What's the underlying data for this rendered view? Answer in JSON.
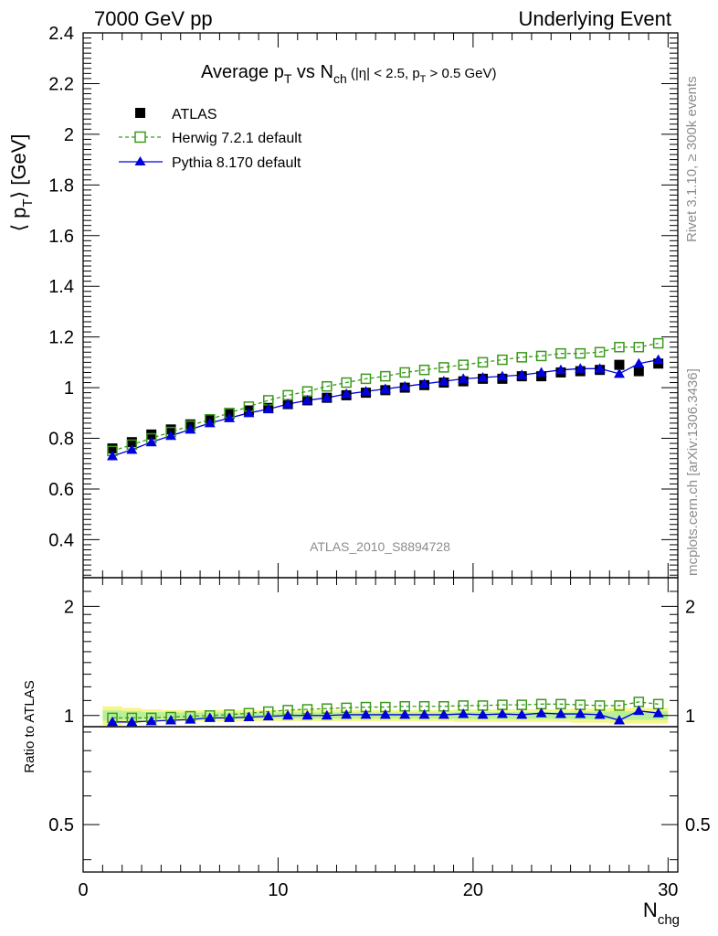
{
  "header": {
    "left": "7000 GeV pp",
    "right": "Underlying Event"
  },
  "chart_data": [
    {
      "type": "scatter",
      "title": "Average p_T vs N_ch (|η| < 2.5, p_T > 0.5 GeV)",
      "title_parts": {
        "main": "Average p",
        "sub_t": "T",
        "vs": " vs N",
        "sub_ch": "ch",
        "cut_1": " (|η| < 2.5, p",
        "cut_sub": "T",
        "cut_2": " > 0.5 GeV)"
      },
      "ylabel": "⟨ p_T ⟩ [GeV]",
      "ylabel_parts": {
        "open": "⟨ p",
        "sub": "T",
        "close": "⟩ [GeV]"
      },
      "xlim": [
        0,
        30.5
      ],
      "ylim": [
        0.25,
        2.4
      ],
      "yticks": [
        0.4,
        0.6,
        0.8,
        1,
        1.2,
        1.4,
        1.6,
        1.8,
        2,
        2.2,
        2.4
      ],
      "ytick_labels": [
        "0.4",
        "0.6",
        "0.8",
        "1",
        "1.2",
        "1.4",
        "1.6",
        "1.8",
        "2",
        "2.2",
        "2.4"
      ],
      "legend_position": "top-left",
      "watermark": "ATLAS_2010_S8894728",
      "x": [
        1.5,
        2.5,
        3.5,
        4.5,
        5.5,
        6.5,
        7.5,
        8.5,
        9.5,
        10.5,
        11.5,
        12.5,
        13.5,
        14.5,
        15.5,
        16.5,
        17.5,
        18.5,
        19.5,
        20.5,
        21.5,
        22.5,
        23.5,
        24.5,
        25.5,
        26.5,
        27.5,
        28.5,
        29.5
      ],
      "series": [
        {
          "name": "ATLAS",
          "marker": "filled-square",
          "color": "#000000",
          "values": [
            0.76,
            0.785,
            0.815,
            0.835,
            0.855,
            0.875,
            0.895,
            0.91,
            0.92,
            0.935,
            0.95,
            0.96,
            0.97,
            0.98,
            0.99,
            1.0,
            1.01,
            1.02,
            1.025,
            1.035,
            1.035,
            1.045,
            1.045,
            1.06,
            1.065,
            1.07,
            1.09,
            1.065,
            1.095
          ]
        },
        {
          "name": "Herwig 7.2.1 default",
          "marker": "open-square",
          "color": "#3a9a1a",
          "line": "dashed",
          "values": [
            0.75,
            0.775,
            0.8,
            0.825,
            0.85,
            0.875,
            0.9,
            0.925,
            0.95,
            0.97,
            0.985,
            1.005,
            1.02,
            1.035,
            1.045,
            1.06,
            1.07,
            1.08,
            1.09,
            1.1,
            1.11,
            1.12,
            1.125,
            1.135,
            1.135,
            1.14,
            1.16,
            1.16,
            1.175
          ]
        },
        {
          "name": "Pythia 8.170 default",
          "marker": "filled-triangle",
          "color": "#0000dd",
          "line": "solid",
          "values": [
            0.73,
            0.755,
            0.785,
            0.81,
            0.835,
            0.86,
            0.88,
            0.9,
            0.915,
            0.935,
            0.95,
            0.96,
            0.975,
            0.985,
            0.995,
            1.005,
            1.015,
            1.025,
            1.035,
            1.04,
            1.045,
            1.05,
            1.06,
            1.07,
            1.075,
            1.075,
            1.055,
            1.095,
            1.11
          ]
        }
      ]
    },
    {
      "type": "scatter",
      "ylabel": "Ratio to ATLAS",
      "xlabel": "N_chg",
      "xlabel_parts": {
        "main": "N",
        "sub": "chg"
      },
      "xlim": [
        0,
        30.5
      ],
      "ylim": [
        0.37,
        2.4
      ],
      "yscale": "log",
      "xticks": [
        0,
        10,
        20,
        30
      ],
      "xtick_labels": [
        "0",
        "10",
        "20",
        "30"
      ],
      "yticks": [
        0.5,
        1,
        2
      ],
      "ytick_labels": [
        "0.5",
        "1",
        "2"
      ],
      "band_colors": {
        "stat": "#b8f09a",
        "total": "#f6f58a"
      },
      "band_halfwidth": [
        0.06,
        0.05,
        0.04,
        0.035,
        0.035,
        0.035,
        0.035,
        0.035,
        0.035,
        0.035,
        0.035,
        0.035,
        0.035,
        0.035,
        0.035,
        0.035,
        0.035,
        0.035,
        0.04,
        0.04,
        0.04,
        0.04,
        0.04,
        0.04,
        0.045,
        0.045,
        0.05,
        0.05,
        0.05
      ],
      "x": [
        1.5,
        2.5,
        3.5,
        4.5,
        5.5,
        6.5,
        7.5,
        8.5,
        9.5,
        10.5,
        11.5,
        12.5,
        13.5,
        14.5,
        15.5,
        16.5,
        17.5,
        18.5,
        19.5,
        20.5,
        21.5,
        22.5,
        23.5,
        24.5,
        25.5,
        26.5,
        27.5,
        28.5,
        29.5
      ],
      "series": [
        {
          "name": "Herwig 7.2.1 default",
          "values": [
            0.985,
            0.985,
            0.985,
            0.99,
            0.995,
            1.0,
            1.005,
            1.015,
            1.025,
            1.035,
            1.04,
            1.045,
            1.05,
            1.055,
            1.055,
            1.06,
            1.06,
            1.06,
            1.065,
            1.065,
            1.07,
            1.07,
            1.075,
            1.075,
            1.07,
            1.065,
            1.065,
            1.09,
            1.075
          ]
        },
        {
          "name": "Pythia 8.170 default",
          "values": [
            0.96,
            0.96,
            0.965,
            0.97,
            0.975,
            0.985,
            0.985,
            0.99,
            0.995,
            1.0,
            1.0,
            1.0,
            1.005,
            1.005,
            1.005,
            1.005,
            1.005,
            1.005,
            1.01,
            1.005,
            1.01,
            1.005,
            1.015,
            1.01,
            1.01,
            1.005,
            0.97,
            1.03,
            1.015
          ]
        }
      ]
    }
  ],
  "side_texts": {
    "rivet": "Rivet 3.1.10, ≥ 300k events",
    "mcplots": "mcplots.cern.ch [arXiv:1306.3436]"
  }
}
